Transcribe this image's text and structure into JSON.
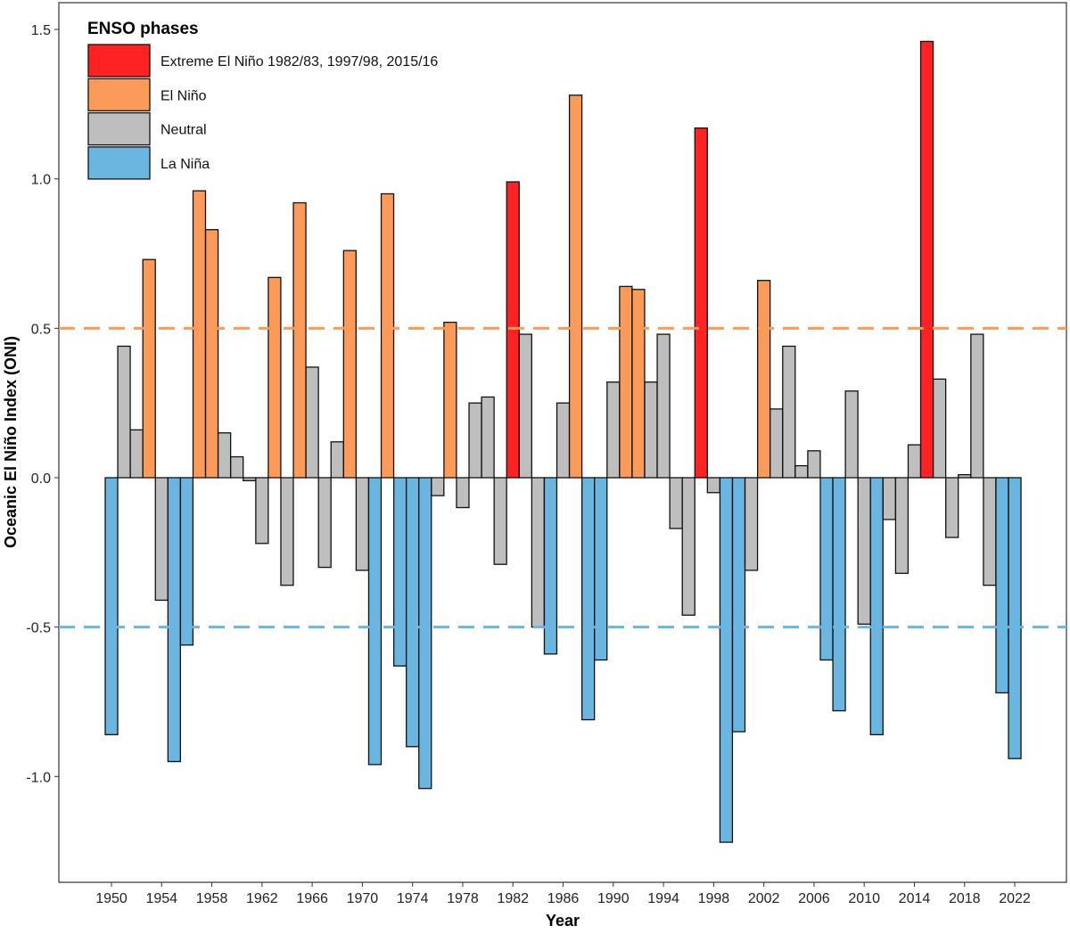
{
  "chart_data": {
    "type": "bar",
    "title": "",
    "xlabel": "Year",
    "ylabel": "Oceanic El Niño Index (ONI)",
    "ylim": [
      -1.35,
      1.6
    ],
    "grid": false,
    "x_ticks": [
      "1950",
      "1954",
      "1958",
      "1962",
      "1966",
      "1970",
      "1974",
      "1978",
      "1982",
      "1986",
      "1990",
      "1994",
      "1998",
      "2002",
      "2006",
      "2010",
      "2014",
      "2018",
      "2022"
    ],
    "y_ticks": [
      {
        "value": 1.5,
        "label": "1.5"
      },
      {
        "value": 1.0,
        "label": "1.0"
      },
      {
        "value": 0.5,
        "label": "0.5"
      },
      {
        "value": 0.0,
        "label": "0.0"
      },
      {
        "value": -0.5,
        "label": "-0.5"
      },
      {
        "value": -1.0,
        "label": "-1.0"
      }
    ],
    "reference_lines": [
      {
        "value": 0.5,
        "color": "#FC9A5A",
        "style": "dashed"
      },
      {
        "value": -0.5,
        "color": "#6BB6E0",
        "style": "dashed"
      }
    ],
    "legend": {
      "title": "ENSO phases",
      "placement": "top-left",
      "entries": [
        {
          "key": "extreme",
          "label": "Extreme El Niño 1982/83, 1997/98, 2015/16",
          "color": "#FF2222"
        },
        {
          "key": "elnino",
          "label": "El Niño",
          "color": "#FC9A5A"
        },
        {
          "key": "neutral",
          "label": "Neutral",
          "color": "#BEBEBE"
        },
        {
          "key": "lanina",
          "label": "La Niña",
          "color": "#6BB6E0"
        }
      ]
    },
    "years": [
      1950,
      1951,
      1952,
      1953,
      1954,
      1955,
      1956,
      1957,
      1958,
      1959,
      1960,
      1961,
      1962,
      1963,
      1964,
      1965,
      1966,
      1967,
      1968,
      1969,
      1970,
      1971,
      1972,
      1973,
      1974,
      1975,
      1976,
      1977,
      1978,
      1979,
      1980,
      1981,
      1982,
      1983,
      1984,
      1985,
      1986,
      1987,
      1988,
      1989,
      1990,
      1991,
      1992,
      1993,
      1994,
      1995,
      1996,
      1997,
      1998,
      1999,
      2000,
      2001,
      2002,
      2003,
      2004,
      2005,
      2006,
      2007,
      2008,
      2009,
      2010,
      2011,
      2012,
      2013,
      2014,
      2015,
      2016,
      2017,
      2018,
      2019,
      2020,
      2021,
      2022
    ],
    "values": [
      -0.86,
      0.44,
      0.16,
      0.73,
      -0.41,
      -0.95,
      -0.56,
      0.96,
      0.83,
      0.15,
      0.07,
      -0.01,
      -0.22,
      0.67,
      -0.36,
      0.92,
      0.37,
      -0.3,
      0.12,
      0.76,
      -0.31,
      -0.96,
      0.95,
      -0.63,
      -0.9,
      -1.04,
      -0.06,
      0.52,
      -0.1,
      0.25,
      0.27,
      -0.29,
      0.99,
      0.48,
      -0.5,
      -0.59,
      0.25,
      1.28,
      -0.81,
      -0.61,
      0.32,
      0.64,
      0.63,
      0.32,
      0.48,
      -0.17,
      -0.46,
      1.17,
      -0.05,
      -1.22,
      -0.85,
      -0.31,
      0.66,
      0.23,
      0.44,
      0.04,
      0.09,
      -0.61,
      -0.78,
      0.29,
      -0.49,
      -0.86,
      -0.14,
      -0.32,
      0.11,
      1.46,
      0.33,
      -0.2,
      0.01,
      0.48,
      -0.36,
      -0.72,
      -0.94
    ],
    "phases": [
      "lanina",
      "neutral",
      "neutral",
      "elnino",
      "neutral",
      "lanina",
      "lanina",
      "elnino",
      "elnino",
      "neutral",
      "neutral",
      "neutral",
      "neutral",
      "elnino",
      "neutral",
      "elnino",
      "neutral",
      "neutral",
      "neutral",
      "elnino",
      "neutral",
      "lanina",
      "elnino",
      "lanina",
      "lanina",
      "lanina",
      "neutral",
      "elnino",
      "neutral",
      "neutral",
      "neutral",
      "neutral",
      "extreme",
      "neutral",
      "neutral",
      "lanina",
      "neutral",
      "elnino",
      "lanina",
      "lanina",
      "neutral",
      "elnino",
      "elnino",
      "neutral",
      "neutral",
      "neutral",
      "neutral",
      "extreme",
      "neutral",
      "lanina",
      "lanina",
      "neutral",
      "elnino",
      "neutral",
      "neutral",
      "neutral",
      "neutral",
      "lanina",
      "lanina",
      "neutral",
      "neutral",
      "lanina",
      "neutral",
      "neutral",
      "neutral",
      "extreme",
      "neutral",
      "neutral",
      "neutral",
      "neutral",
      "neutral",
      "lanina",
      "lanina"
    ]
  }
}
